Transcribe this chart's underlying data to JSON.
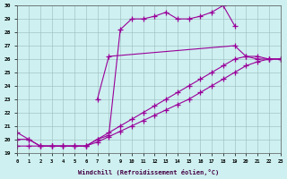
{
  "xlabel": "Windchill (Refroidissement éolien,°C)",
  "xlim": [
    0,
    23
  ],
  "ylim": [
    19,
    30
  ],
  "yticks": [
    19,
    20,
    21,
    22,
    23,
    24,
    25,
    26,
    27,
    28,
    29,
    30
  ],
  "xticks": [
    0,
    1,
    2,
    3,
    4,
    5,
    6,
    7,
    8,
    9,
    10,
    11,
    12,
    13,
    14,
    15,
    16,
    17,
    18,
    19,
    20,
    21,
    22,
    23
  ],
  "line_color": "#990099",
  "bg_color": "#cef0f0",
  "series": [
    {
      "x": [
        0,
        1,
        2,
        3,
        4,
        5,
        6,
        7,
        8,
        9,
        10,
        11,
        12,
        13,
        14,
        15,
        16,
        17,
        18,
        19
      ],
      "y": [
        20.5,
        20.0,
        19.5,
        19.5,
        19.5,
        19.5,
        19.5,
        20.0,
        20.3,
        28.2,
        29.0,
        29.0,
        29.2,
        29.5,
        29.0,
        29.0,
        29.2,
        29.5,
        30.0,
        28.5
      ]
    },
    {
      "x": [
        7,
        8,
        19,
        20,
        21,
        22,
        23
      ],
      "y": [
        23.0,
        26.2,
        27.0,
        26.2,
        26.0,
        26.0,
        26.0
      ]
    },
    {
      "x": [
        0,
        1,
        2,
        3,
        4,
        5,
        6,
        7,
        8,
        9,
        10,
        11,
        12,
        13,
        14,
        15,
        16,
        17,
        18,
        19,
        20,
        21,
        22,
        23
      ],
      "y": [
        20.0,
        20.0,
        19.5,
        19.5,
        19.5,
        19.5,
        19.5,
        20.0,
        20.5,
        21.0,
        21.5,
        22.0,
        22.5,
        23.0,
        23.5,
        24.0,
        24.5,
        25.0,
        25.5,
        26.0,
        26.2,
        26.2,
        26.0,
        26.0
      ]
    },
    {
      "x": [
        0,
        1,
        2,
        3,
        4,
        5,
        6,
        7,
        8,
        9,
        10,
        11,
        12,
        13,
        14,
        15,
        16,
        17,
        18,
        19,
        20,
        21,
        22,
        23
      ],
      "y": [
        19.5,
        19.5,
        19.5,
        19.5,
        19.5,
        19.5,
        19.5,
        19.8,
        20.2,
        20.6,
        21.0,
        21.4,
        21.8,
        22.2,
        22.6,
        23.0,
        23.5,
        24.0,
        24.5,
        25.0,
        25.5,
        25.8,
        26.0,
        26.0
      ]
    }
  ]
}
